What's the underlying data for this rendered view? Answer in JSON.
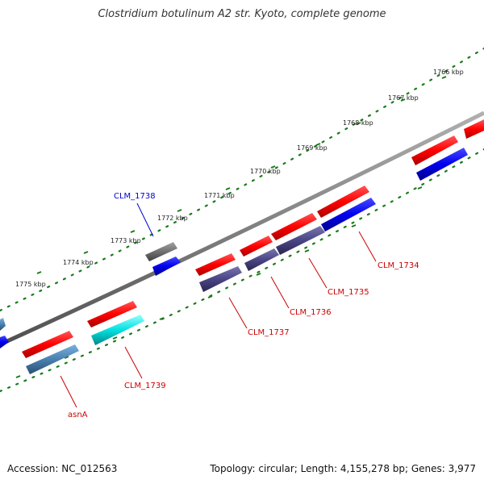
{
  "title": "Clostridium botulinum A2 str. Kyoto, complete genome",
  "footer": {
    "accession": "Accession: NC_012563",
    "stats": "Topology: circular; Length: 4,155,278 bp; Genes: 3,977"
  },
  "colors": {
    "backbone": "#808080",
    "forward_gene": "#ff0000",
    "tick": "#1a7a1a",
    "label_red": "#cc0000",
    "label_blue": "#0000cc",
    "cds_blue": "#0000ee",
    "cds_purple": "#4a4585",
    "cds_steel": "#4a80b0",
    "cds_cyan": "#00e0e0",
    "cds_gray": "#707070"
  },
  "scale_ticks": [
    {
      "label": "1766 kbp"
    },
    {
      "label": "1767 kbp"
    },
    {
      "label": "1768 kbp"
    },
    {
      "label": "1769 kbp"
    },
    {
      "label": "1770 kbp"
    },
    {
      "label": "1771 kbp"
    },
    {
      "label": "1772 kbp"
    },
    {
      "label": "1773 kbp"
    },
    {
      "label": "1774 kbp"
    },
    {
      "label": "1775 kbp"
    }
  ],
  "gene_labels": [
    {
      "name": "CLM_1738",
      "color": "blue"
    },
    {
      "name": "CLM_1734",
      "color": "red"
    },
    {
      "name": "CLM_1735",
      "color": "red"
    },
    {
      "name": "CLM_1736",
      "color": "red"
    },
    {
      "name": "CLM_1737",
      "color": "red"
    },
    {
      "name": "CLM_1739",
      "color": "red"
    },
    {
      "name": "asnA",
      "color": "red"
    }
  ]
}
